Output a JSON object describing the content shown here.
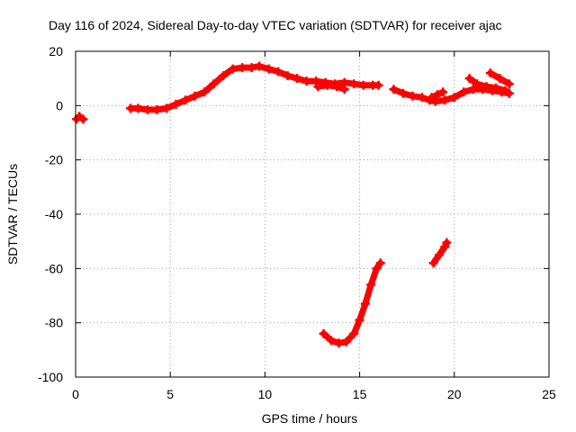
{
  "chart_data": {
    "type": "scatter",
    "title": "Day 116 of 2024, Sidereal Day-to-day VTEC variation (SDTVAR) for receiver ajac",
    "xlabel": "GPS time / hours",
    "ylabel": "SDTVAR / TECUs",
    "xlim": [
      0,
      25
    ],
    "ylim": [
      -100,
      20
    ],
    "xticks": [
      0,
      5,
      10,
      15,
      20,
      25
    ],
    "yticks": [
      -100,
      -80,
      -60,
      -40,
      -20,
      0,
      20
    ],
    "grid": true,
    "legend": "none",
    "color": "#ff0000",
    "series": [
      {
        "x": [
          0.05,
          0.2,
          0.4
        ],
        "y": [
          -5,
          -4,
          -5
        ]
      },
      {
        "x": [
          2.9,
          3.3,
          3.8,
          4.3,
          4.8,
          5.3,
          5.8,
          6.3,
          6.8,
          7.3,
          7.8,
          8.3,
          8.8,
          9.3,
          9.7,
          10.2,
          10.7,
          11.2,
          11.7,
          12.2,
          12.7,
          13.2,
          13.7,
          14.2,
          14.7,
          15.2,
          15.7,
          16.0
        ],
        "y": [
          -1,
          -1,
          -1.5,
          -1.5,
          -1,
          0.5,
          2,
          3.5,
          5,
          8,
          11,
          13.5,
          14,
          14,
          14.5,
          13.5,
          12.5,
          11,
          10,
          9,
          9,
          8.5,
          8,
          8.5,
          8,
          7.5,
          7.5,
          7.5
        ]
      },
      {
        "x": [
          12.8,
          13.3,
          13.8,
          14.2
        ],
        "y": [
          7,
          7.5,
          7,
          6
        ]
      },
      {
        "x": [
          16.8,
          17.3,
          17.8,
          18.3,
          18.7,
          19.0,
          19.5,
          20.0,
          20.5,
          21.0,
          21.5,
          22.0,
          22.5,
          22.9
        ],
        "y": [
          6,
          4.5,
          3.5,
          3,
          2,
          1.5,
          2,
          3,
          5,
          6,
          6,
          5.5,
          5,
          4.5
        ]
      },
      {
        "x": [
          20.8,
          21.2,
          21.7,
          22.2,
          22.7,
          22.9
        ],
        "y": [
          10,
          8,
          7,
          6.5,
          5.5,
          4.5
        ]
      },
      {
        "x": [
          21.9,
          22.4,
          22.9
        ],
        "y": [
          12,
          10,
          8
        ]
      },
      {
        "x": [
          18.8,
          19.1,
          19.4
        ],
        "y": [
          3,
          4,
          5
        ]
      },
      {
        "x": [
          13.1,
          13.5,
          13.9,
          14.3,
          14.7,
          15.0,
          15.3,
          15.6,
          15.9,
          16.1
        ],
        "y": [
          -84,
          -86.5,
          -87.5,
          -87,
          -84,
          -79,
          -73,
          -66,
          -60,
          -58
        ]
      },
      {
        "x": [
          18.9,
          19.2,
          19.5,
          19.6
        ],
        "y": [
          -58,
          -55,
          -52,
          -50.5
        ]
      }
    ]
  }
}
